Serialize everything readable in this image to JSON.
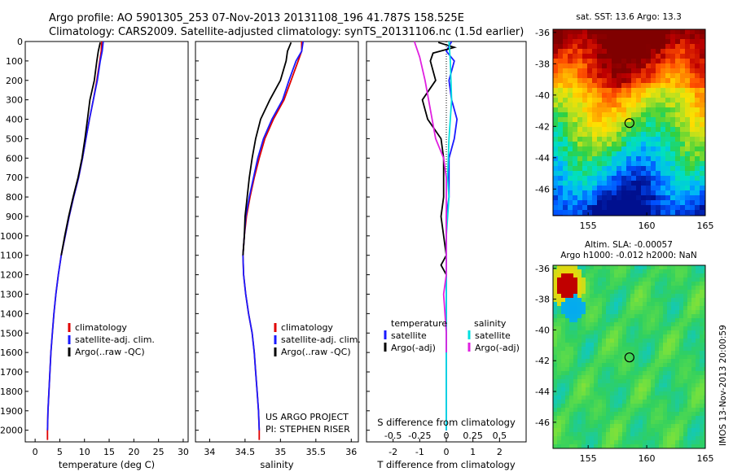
{
  "title_line1": "Argo profile: AO 5901305_253 07-Nov-2013 20131108_196 41.787S 158.525E",
  "title_line2": "Climatology: CARS2009. Satellite-adjusted climatology: synTS_20131106.nc (1.5d earlier)",
  "credit_line1": "US ARGO PROJECT",
  "credit_line2": "PI: STEPHEN RISER",
  "watermark": "IMOS 13-Nov-2013 20:00:59",
  "colors": {
    "climatology": "#e00000",
    "satellite": "#1a1aff",
    "argo": "#000000",
    "salinity_satellite": "#00e0e0",
    "salinity_argo": "#e020e0"
  },
  "chart_data": [
    {
      "type": "line",
      "xlabel": "temperature (deg C)",
      "ylabel": "",
      "xlim": [
        -2,
        31
      ],
      "ylim": [
        2060,
        0
      ],
      "xticks": [
        0,
        5,
        10,
        15,
        20,
        25,
        30
      ],
      "yticks": [
        0,
        100,
        200,
        300,
        400,
        500,
        600,
        700,
        800,
        900,
        1000,
        1100,
        1200,
        1300,
        1400,
        1500,
        1600,
        1700,
        1800,
        1900,
        2000
      ],
      "legend": [
        "climatology",
        "satellite-adj. clim.",
        "Argo(..raw -QC)"
      ],
      "series": [
        {
          "name": "climatology",
          "color": "#e00000",
          "points": [
            [
              13.5,
              0
            ],
            [
              13.4,
              50
            ],
            [
              13.1,
              100
            ],
            [
              12.5,
              200
            ],
            [
              11.8,
              300
            ],
            [
              11.0,
              400
            ],
            [
              10.3,
              500
            ],
            [
              9.6,
              600
            ],
            [
              8.8,
              700
            ],
            [
              7.8,
              800
            ],
            [
              6.9,
              900
            ],
            [
              6.1,
              1000
            ],
            [
              5.3,
              1100
            ],
            [
              4.7,
              1200
            ],
            [
              4.2,
              1300
            ],
            [
              3.8,
              1400
            ],
            [
              3.5,
              1500
            ],
            [
              3.2,
              1600
            ],
            [
              3.0,
              1700
            ],
            [
              2.8,
              1800
            ],
            [
              2.6,
              1900
            ],
            [
              2.5,
              2000
            ],
            [
              2.5,
              2050
            ]
          ]
        },
        {
          "name": "satellite-adj. clim.",
          "color": "#1a1aff",
          "points": [
            [
              13.8,
              0
            ],
            [
              13.6,
              50
            ],
            [
              13.2,
              100
            ],
            [
              12.6,
              200
            ],
            [
              11.8,
              300
            ],
            [
              11.0,
              400
            ],
            [
              10.3,
              500
            ],
            [
              9.6,
              600
            ],
            [
              8.8,
              700
            ],
            [
              7.8,
              800
            ],
            [
              6.9,
              900
            ],
            [
              6.1,
              1000
            ],
            [
              5.3,
              1100
            ],
            [
              4.7,
              1200
            ],
            [
              4.2,
              1300
            ],
            [
              3.8,
              1400
            ],
            [
              3.5,
              1500
            ],
            [
              3.2,
              1600
            ],
            [
              3.0,
              1700
            ],
            [
              2.8,
              1800
            ],
            [
              2.6,
              1900
            ],
            [
              2.5,
              2000
            ]
          ]
        },
        {
          "name": "Argo(..raw -QC)",
          "color": "#000000",
          "points": [
            [
              13.2,
              5
            ],
            [
              12.8,
              50
            ],
            [
              12.5,
              100
            ],
            [
              12.0,
              200
            ],
            [
              11.1,
              300
            ],
            [
              10.6,
              400
            ],
            [
              10.1,
              500
            ],
            [
              9.5,
              600
            ],
            [
              8.7,
              700
            ],
            [
              7.7,
              800
            ],
            [
              6.8,
              900
            ],
            [
              6.0,
              1000
            ],
            [
              5.3,
              1100
            ]
          ]
        }
      ]
    },
    {
      "type": "line",
      "xlabel": "salinity",
      "xlim": [
        33.8,
        36.1
      ],
      "ylim": [
        2060,
        0
      ],
      "xticks": [
        34,
        34.5,
        35,
        35.5,
        36
      ],
      "xtick_labels": [
        "34",
        "34.5",
        "35",
        "35.5",
        "36"
      ],
      "legend": [
        "climatology",
        "satellite-adj. clim.",
        "Argo(..raw -QC)"
      ],
      "series": [
        {
          "name": "climatology",
          "color": "#e00000",
          "points": [
            [
              35.3,
              0
            ],
            [
              35.3,
              50
            ],
            [
              35.25,
              100
            ],
            [
              35.15,
              200
            ],
            [
              35.05,
              300
            ],
            [
              34.9,
              400
            ],
            [
              34.78,
              500
            ],
            [
              34.7,
              600
            ],
            [
              34.63,
              700
            ],
            [
              34.57,
              800
            ],
            [
              34.52,
              900
            ],
            [
              34.49,
              1000
            ],
            [
              34.47,
              1100
            ],
            [
              34.48,
              1200
            ],
            [
              34.51,
              1300
            ],
            [
              34.55,
              1400
            ],
            [
              34.6,
              1500
            ],
            [
              34.63,
              1600
            ],
            [
              34.65,
              1700
            ],
            [
              34.67,
              1800
            ],
            [
              34.69,
              1900
            ],
            [
              34.7,
              2000
            ],
            [
              34.7,
              2050
            ]
          ]
        },
        {
          "name": "satellite-adj. clim.",
          "color": "#1a1aff",
          "points": [
            [
              35.32,
              0
            ],
            [
              35.3,
              50
            ],
            [
              35.22,
              100
            ],
            [
              35.12,
              200
            ],
            [
              35.03,
              300
            ],
            [
              34.88,
              400
            ],
            [
              34.76,
              500
            ],
            [
              34.68,
              600
            ],
            [
              34.62,
              700
            ],
            [
              34.56,
              800
            ],
            [
              34.51,
              900
            ],
            [
              34.49,
              1000
            ],
            [
              34.47,
              1100
            ],
            [
              34.48,
              1200
            ],
            [
              34.51,
              1300
            ],
            [
              34.55,
              1400
            ],
            [
              34.6,
              1500
            ],
            [
              34.63,
              1600
            ],
            [
              34.65,
              1700
            ],
            [
              34.67,
              1800
            ],
            [
              34.69,
              1900
            ],
            [
              34.7,
              2000
            ]
          ]
        },
        {
          "name": "Argo(..raw -QC)",
          "color": "#000000",
          "points": [
            [
              35.15,
              5
            ],
            [
              35.1,
              50
            ],
            [
              35.08,
              100
            ],
            [
              35.0,
              200
            ],
            [
              34.85,
              300
            ],
            [
              34.72,
              400
            ],
            [
              34.65,
              500
            ],
            [
              34.6,
              600
            ],
            [
              34.56,
              700
            ],
            [
              34.53,
              800
            ],
            [
              34.5,
              900
            ],
            [
              34.49,
              1000
            ],
            [
              34.47,
              1100
            ]
          ]
        }
      ]
    },
    {
      "type": "line",
      "xlabel": "T difference from climatology",
      "top_axis_label": "S difference from climatology",
      "xlim": [
        -3,
        3
      ],
      "ylim": [
        2060,
        0
      ],
      "xticks": [
        -2,
        -1,
        0,
        1,
        2
      ],
      "top_ticks": [
        -0.5,
        -0.25,
        0,
        0.25,
        0.5
      ],
      "top_tick_labels": [
        "-0.5",
        "-0.25",
        "0",
        "0.25",
        "0.5"
      ],
      "legend_temperature_header": "temperature",
      "legend_salinity_header": "salinity",
      "legend_temperature": [
        "satellite",
        "Argo(-adj)"
      ],
      "legend_salinity": [
        "satellite",
        "Argo(-adj)"
      ],
      "series": [
        {
          "name": "T satellite",
          "color": "#1a1aff",
          "points": [
            [
              0.2,
              0
            ],
            [
              0.0,
              50
            ],
            [
              0.3,
              100
            ],
            [
              0.1,
              200
            ],
            [
              0.2,
              300
            ],
            [
              0.4,
              400
            ],
            [
              0.3,
              500
            ],
            [
              0.1,
              600
            ],
            [
              0.1,
              700
            ],
            [
              0.1,
              800
            ],
            [
              0.0,
              900
            ],
            [
              0.0,
              1000
            ],
            [
              0.0,
              1100
            ],
            [
              0.0,
              1200
            ],
            [
              0.0,
              2000
            ]
          ]
        },
        {
          "name": "T Argo(-adj)",
          "color": "#000000",
          "points": [
            [
              -0.3,
              5
            ],
            [
              0.3,
              30
            ],
            [
              -0.5,
              60
            ],
            [
              -0.6,
              100
            ],
            [
              -0.4,
              200
            ],
            [
              -0.9,
              300
            ],
            [
              -0.7,
              400
            ],
            [
              -0.2,
              500
            ],
            [
              -0.1,
              600
            ],
            [
              -0.1,
              700
            ],
            [
              -0.1,
              800
            ],
            [
              -0.2,
              900
            ],
            [
              -0.1,
              1000
            ],
            [
              0.0,
              1100
            ],
            [
              -0.2,
              1150
            ],
            [
              0.0,
              1200
            ]
          ]
        },
        {
          "name": "S satellite",
          "color": "#00e0e0",
          "points": [
            [
              0.1,
              0
            ],
            [
              0.15,
              100
            ],
            [
              0.2,
              300
            ],
            [
              0.1,
              500
            ],
            [
              0.05,
              700
            ],
            [
              0.1,
              800
            ],
            [
              0.0,
              1000
            ],
            [
              0.0,
              1200
            ],
            [
              0.0,
              1500
            ],
            [
              0.0,
              2000
            ]
          ]
        },
        {
          "name": "S Argo(-adj)",
          "color": "#e020e0",
          "points": [
            [
              -1.2,
              0
            ],
            [
              -1.0,
              80
            ],
            [
              -0.8,
              200
            ],
            [
              -0.6,
              350
            ],
            [
              -0.4,
              500
            ],
            [
              -0.1,
              600
            ],
            [
              0.0,
              700
            ],
            [
              0.0,
              900
            ],
            [
              0.0,
              1200
            ],
            [
              -0.1,
              1300
            ],
            [
              0.0,
              1500
            ],
            [
              0.0,
              1600
            ]
          ]
        }
      ]
    },
    {
      "type": "heatmap",
      "title": "sat. SST: 13.6 Argo: 13.3",
      "xlim": [
        152,
        165
      ],
      "ylim": [
        -47.7,
        -35.8
      ],
      "xticks": [
        155,
        160,
        165
      ],
      "yticks": [
        -36,
        -38,
        -40,
        -42,
        -44,
        -46
      ],
      "marker": {
        "lon": 158.525,
        "lat": -41.787
      },
      "palette": [
        "#00108f",
        "#0050ff",
        "#00b0ff",
        "#00e0c0",
        "#30d040",
        "#b8e020",
        "#ffe000",
        "#ffa000",
        "#ff5000",
        "#c00000",
        "#800000"
      ]
    },
    {
      "type": "heatmap",
      "title_line1": "Altim. SLA: -0.00057",
      "title_line2": "Argo h1000: -0.012 h2000: NaN",
      "xlim": [
        152,
        165
      ],
      "ylim": [
        -47.7,
        -35.8
      ],
      "xticks": [
        155,
        160,
        165
      ],
      "yticks": [
        -36,
        -38,
        -40,
        -42,
        -44,
        -46
      ],
      "marker": {
        "lon": 158.525,
        "lat": -41.787
      }
    }
  ]
}
